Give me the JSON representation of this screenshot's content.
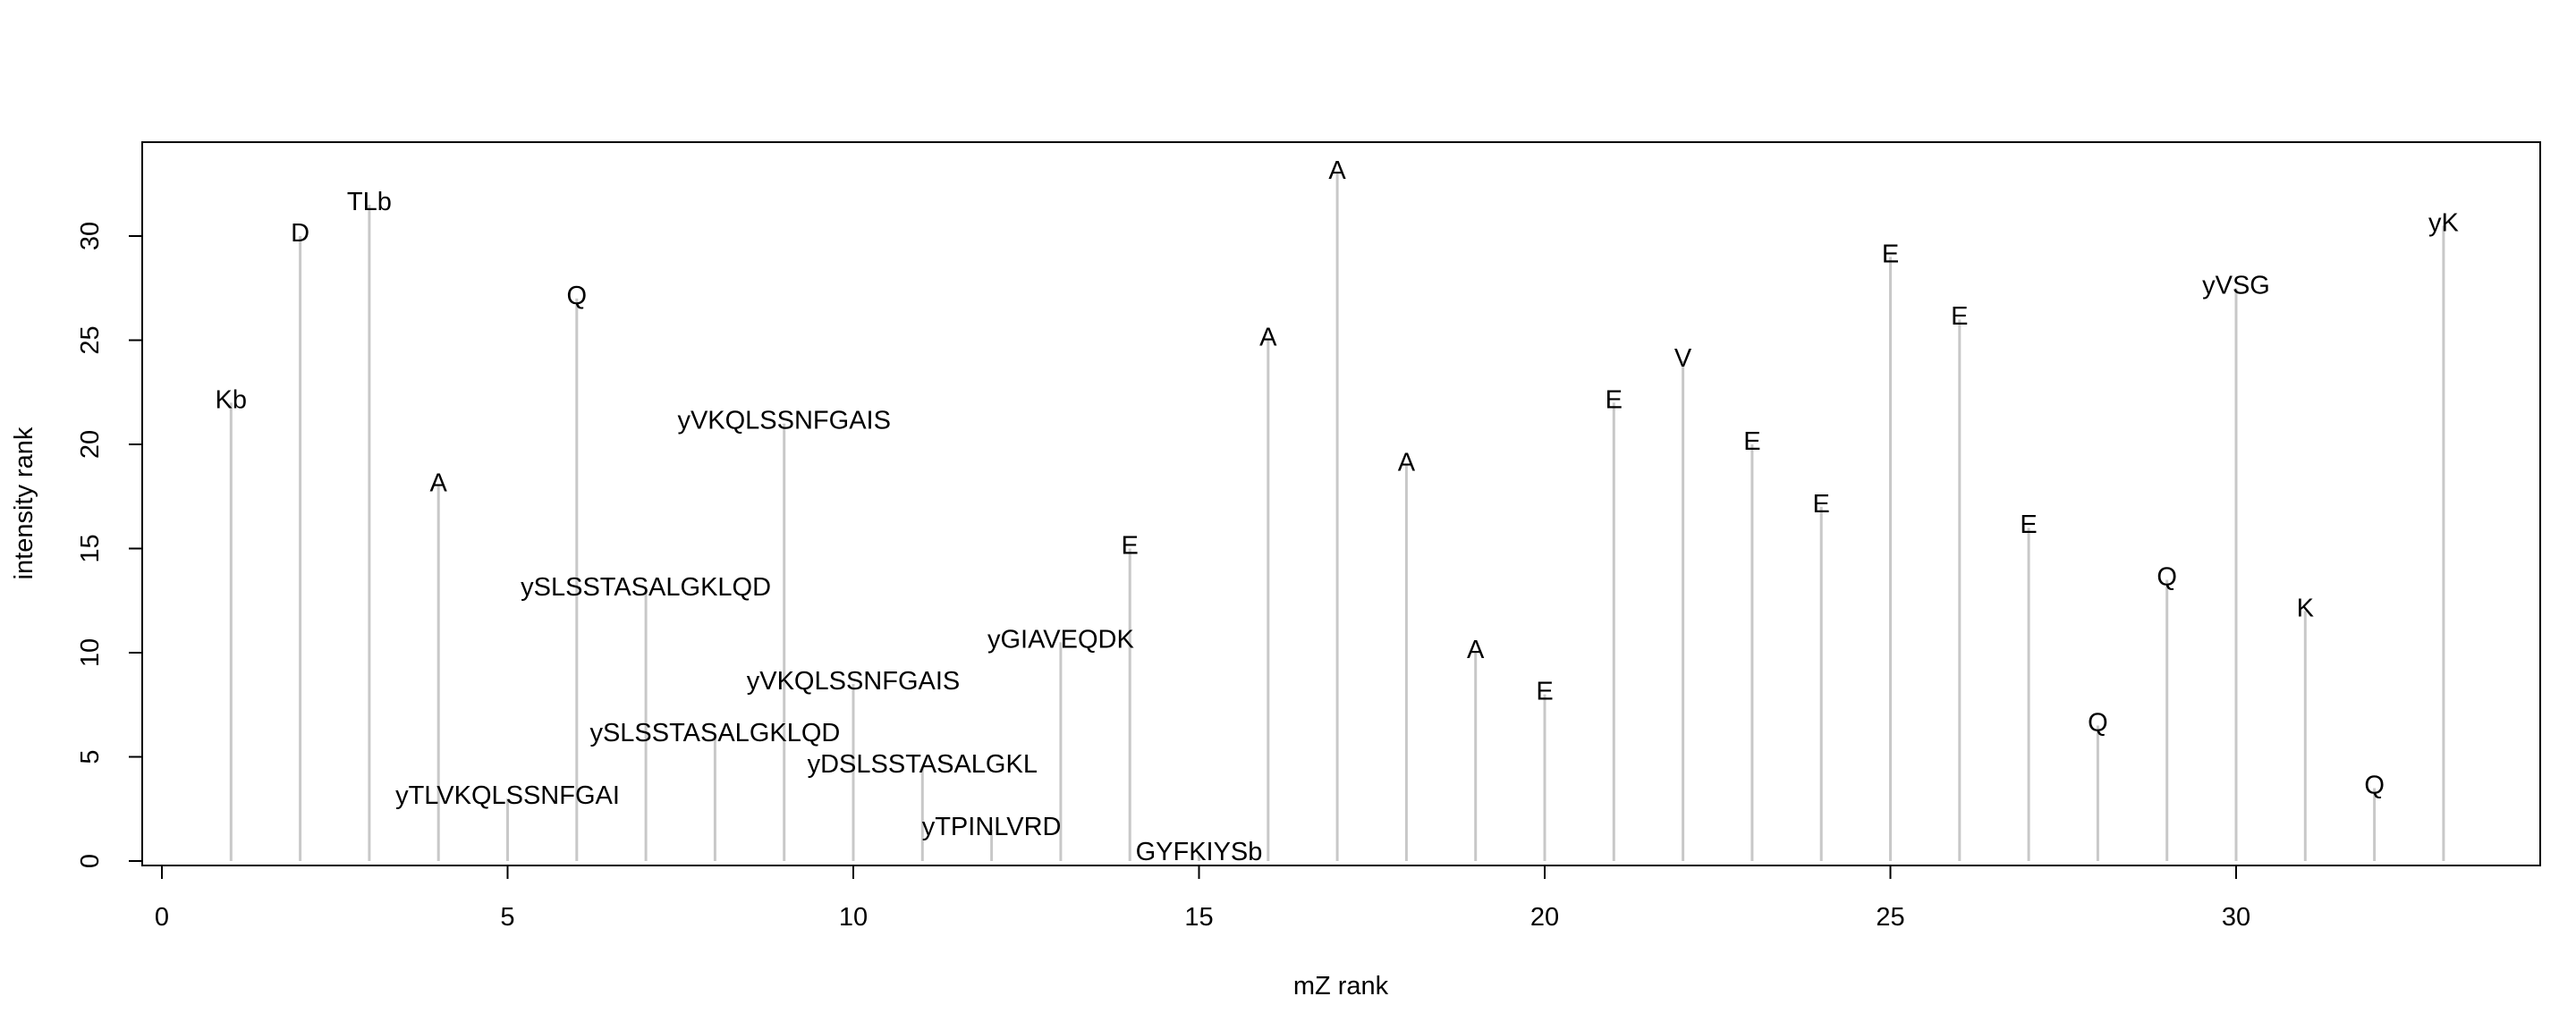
{
  "chart_data": {
    "type": "bar",
    "subtype": "stem",
    "xlabel": "mZ rank",
    "ylabel": "intensity rank",
    "xlim": [
      0,
      34
    ],
    "ylim": [
      0,
      33
    ],
    "xticks": [
      0,
      5,
      10,
      15,
      20,
      25,
      30
    ],
    "yticks": [
      0,
      5,
      10,
      15,
      20,
      25,
      30
    ],
    "grid": false,
    "stem_color": "#c8c8c8",
    "points": [
      {
        "x": 1,
        "y": 22,
        "label": "Kb"
      },
      {
        "x": 2,
        "y": 30,
        "label": "D"
      },
      {
        "x": 3,
        "y": 31.5,
        "label": "TLb"
      },
      {
        "x": 4,
        "y": 18,
        "label": "A"
      },
      {
        "x": 5,
        "y": 3,
        "label": "yTLVKQLSSNFGAI"
      },
      {
        "x": 6,
        "y": 27,
        "label": "Q"
      },
      {
        "x": 7,
        "y": 13,
        "label": "ySLSSTASALGKLQD"
      },
      {
        "x": 8,
        "y": 6,
        "label": "ySLSSTASALGKLQD"
      },
      {
        "x": 9,
        "y": 21,
        "label": "yVKQLSSNFGAIS"
      },
      {
        "x": 10,
        "y": 8.5,
        "label": "yVKQLSSNFGAIS"
      },
      {
        "x": 11,
        "y": 4.5,
        "label": "yDSLSSTASALGKL"
      },
      {
        "x": 12,
        "y": 1.5,
        "label": "yTPINLVRD"
      },
      {
        "x": 13,
        "y": 10.5,
        "label": "yGIAVEQDK"
      },
      {
        "x": 14,
        "y": 15,
        "label": "E"
      },
      {
        "x": 15,
        "y": 0.3,
        "label": "GYFKIYSb"
      },
      {
        "x": 16,
        "y": 25,
        "label": "A"
      },
      {
        "x": 17,
        "y": 33,
        "label": "A"
      },
      {
        "x": 18,
        "y": 19,
        "label": "A"
      },
      {
        "x": 19,
        "y": 10,
        "label": "A"
      },
      {
        "x": 20,
        "y": 8,
        "label": "E"
      },
      {
        "x": 21,
        "y": 22,
        "label": "E"
      },
      {
        "x": 22,
        "y": 24,
        "label": "V"
      },
      {
        "x": 23,
        "y": 20,
        "label": "E"
      },
      {
        "x": 24,
        "y": 17,
        "label": "E"
      },
      {
        "x": 25,
        "y": 29,
        "label": "E"
      },
      {
        "x": 26,
        "y": 26,
        "label": "E"
      },
      {
        "x": 27,
        "y": 16,
        "label": "E"
      },
      {
        "x": 28,
        "y": 6.5,
        "label": "Q"
      },
      {
        "x": 29,
        "y": 13.5,
        "label": "Q"
      },
      {
        "x": 30,
        "y": 27.5,
        "label": "yVSG"
      },
      {
        "x": 31,
        "y": 12,
        "label": "K"
      },
      {
        "x": 32,
        "y": 3.5,
        "label": "Q"
      },
      {
        "x": 33,
        "y": 30.5,
        "label": "yK"
      }
    ]
  }
}
